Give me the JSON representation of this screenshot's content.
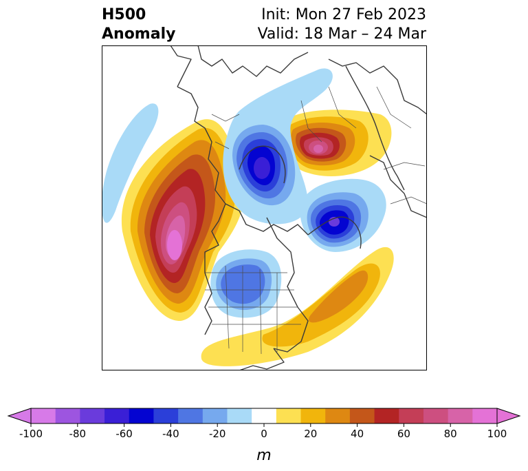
{
  "title": {
    "left_line1": "H500",
    "left_line2": "Anomaly",
    "init": "Init: Mon 27 Feb 2023",
    "valid": "Valid: 18 Mar – 24 Mar"
  },
  "colorbar": {
    "unit": "m",
    "ticks": [
      "-100",
      "-80",
      "-60",
      "-40",
      "-20",
      "0",
      "20",
      "40",
      "60",
      "80",
      "100"
    ],
    "levels": [
      -100,
      -90,
      -80,
      -70,
      -60,
      -50,
      -40,
      -30,
      -20,
      -10,
      10,
      20,
      30,
      40,
      50,
      60,
      70,
      80,
      90,
      100
    ],
    "colors": [
      "#d77ae8",
      "#9d55e0",
      "#6a3bdc",
      "#3a1fd6",
      "#0404d1",
      "#2b3fd9",
      "#4f76e3",
      "#76a9ee",
      "#a9daf7",
      "#ffffff",
      "#fde052",
      "#f1b50c",
      "#de8812",
      "#c4571a",
      "#b32424",
      "#c43e57",
      "#cd4f80",
      "#d763a8",
      "#e472d6"
    ],
    "extend_low_color": "#d77ae8",
    "extend_high_color": "#e472d6"
  },
  "anomalies": [
    {
      "name": "north-pacific-ridge",
      "sign": "positive",
      "peak_m": 95
    },
    {
      "name": "siberia-ridge",
      "sign": "positive",
      "peak_m": 75
    },
    {
      "name": "north-atlantic-ridge",
      "sign": "positive",
      "peak_m": 45
    },
    {
      "name": "hudson-bay-trough",
      "sign": "negative",
      "peak_m": -65
    },
    {
      "name": "east-siberian-trough",
      "sign": "negative",
      "peak_m": -60
    },
    {
      "name": "central-north-america-trough",
      "sign": "negative",
      "peak_m": -45
    },
    {
      "name": "gulf-of-alaska-trough",
      "sign": "negative",
      "peak_m": -15
    }
  ]
}
